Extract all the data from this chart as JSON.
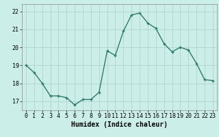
{
  "x": [
    0,
    1,
    2,
    3,
    4,
    5,
    6,
    7,
    8,
    9,
    10,
    11,
    12,
    13,
    14,
    15,
    16,
    17,
    18,
    19,
    20,
    21,
    22,
    23
  ],
  "y": [
    19.0,
    18.6,
    18.0,
    17.3,
    17.3,
    17.2,
    16.8,
    17.1,
    17.1,
    17.5,
    19.8,
    19.55,
    20.9,
    21.8,
    21.9,
    21.35,
    21.05,
    20.2,
    19.75,
    20.0,
    19.85,
    19.1,
    18.2,
    18.15
  ],
  "line_color": "#2d7a6a",
  "marker_color": "#2d7a6a",
  "bg_color": "#cceee8",
  "grid_color": "#aacccc",
  "xlabel": "Humidex (Indice chaleur)",
  "xlim": [
    -0.5,
    23.5
  ],
  "ylim": [
    16.5,
    22.4
  ],
  "yticks": [
    17,
    18,
    19,
    20,
    21,
    22
  ],
  "xticks": [
    0,
    1,
    2,
    3,
    4,
    5,
    6,
    7,
    8,
    9,
    10,
    11,
    12,
    13,
    14,
    15,
    16,
    17,
    18,
    19,
    20,
    21,
    22,
    23
  ],
  "xlabel_fontsize": 7,
  "tick_fontsize": 6,
  "linewidth": 1.0,
  "markersize": 2.5
}
